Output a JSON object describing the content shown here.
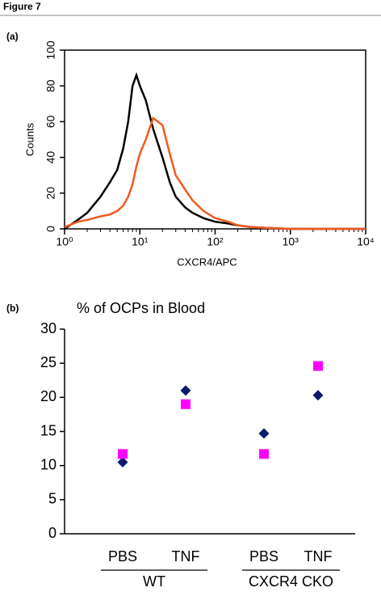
{
  "header": {
    "title": "Figure 7"
  },
  "chart_data": [
    {
      "type": "line",
      "panel": "(a)",
      "xlabel": "CXCR4/APC",
      "ylabel": "Counts",
      "xscale": "log",
      "xlim": [
        1,
        10000
      ],
      "xticks": [
        {
          "value": 1,
          "label": "10⁰"
        },
        {
          "value": 10,
          "label": "10¹"
        },
        {
          "value": 100,
          "label": "10²"
        },
        {
          "value": 1000,
          "label": "10³"
        },
        {
          "value": 10000,
          "label": "10⁴"
        }
      ],
      "ylim": [
        0,
        100
      ],
      "yticks": [
        0,
        20,
        40,
        60,
        80,
        100
      ],
      "x": [
        1,
        1.5,
        2,
        3,
        4,
        5,
        6,
        7,
        8,
        9,
        10,
        12,
        15,
        20,
        25,
        30,
        40,
        50,
        70,
        100,
        150,
        200,
        300,
        500,
        1000,
        2000,
        5000,
        10000
      ],
      "series": [
        {
          "color": "#000000",
          "values": [
            0,
            5,
            9,
            18,
            26,
            33,
            45,
            60,
            80,
            86,
            80,
            72,
            56,
            40,
            26,
            18,
            12,
            9,
            6,
            4,
            3,
            2,
            1,
            0.5,
            0,
            0,
            0,
            0
          ]
        },
        {
          "color": "#f05a1e",
          "values": [
            1,
            4,
            5,
            7,
            8,
            10,
            13,
            18,
            25,
            35,
            42,
            50,
            62,
            58,
            42,
            30,
            22,
            16,
            10,
            6,
            4,
            2,
            1,
            0.5,
            0,
            0,
            0,
            0
          ]
        }
      ]
    },
    {
      "type": "scatter",
      "panel": "(b)",
      "title": "% of OCPs in Blood",
      "categories": [
        "PBS",
        "TNF",
        "PBS",
        "TNF"
      ],
      "groups": [
        {
          "name": "WT",
          "categories": [
            "PBS",
            "TNF"
          ]
        },
        {
          "name": "CXCR4 CKO",
          "categories": [
            "PBS",
            "TNF"
          ]
        }
      ],
      "ylim": [
        0,
        30
      ],
      "yticks": [
        0,
        5,
        10,
        15,
        20,
        25,
        30
      ],
      "series": [
        {
          "color": "#0c1a6e",
          "marker": "diamond",
          "values": [
            10.5,
            21,
            14.7,
            20.3
          ]
        },
        {
          "color": "#ff00ff",
          "marker": "square",
          "values": [
            11.7,
            19,
            11.7,
            24.6
          ]
        }
      ]
    }
  ]
}
